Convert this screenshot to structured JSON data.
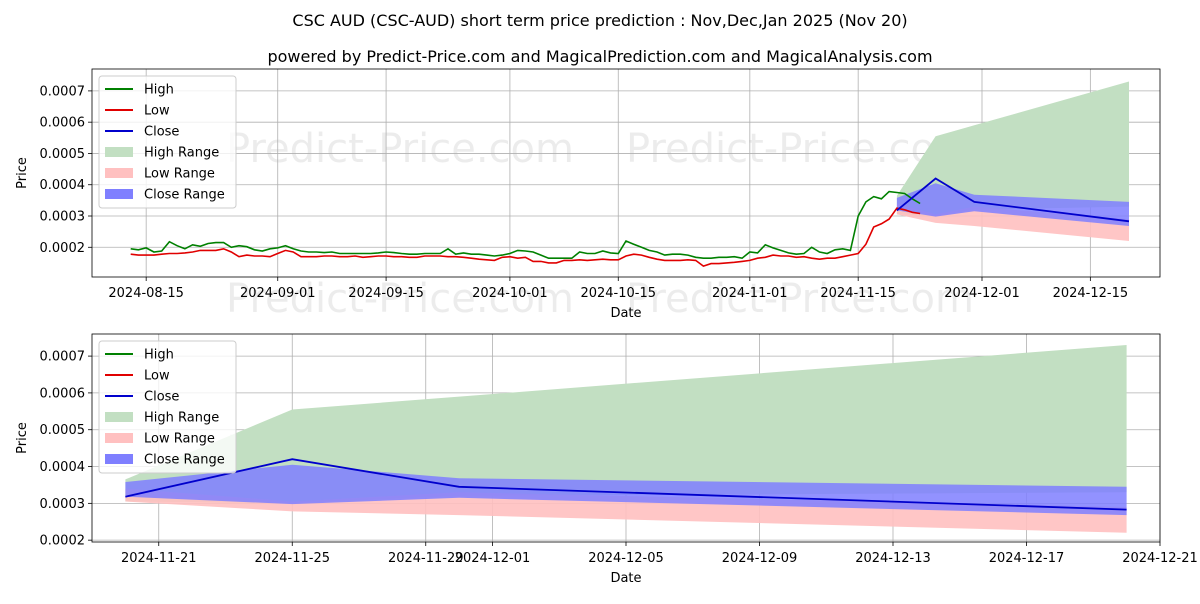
{
  "title_line1": "CSC AUD (CSC-AUD) short term price prediction : Nov,Dec,Jan 2025 (Nov 20)",
  "title_line2": "powered by Predict-Price.com and MagicalPrediction.com and MagicalAnalysis.com",
  "watermark": "Predict-Price.com",
  "colors": {
    "high": "#008000",
    "low": "#e00000",
    "close": "#0000cc",
    "high_range": "#c2dfc2",
    "low_range": "#ffc0c0",
    "close_range": "#7f7fff"
  },
  "chart_data": [
    {
      "type": "line",
      "xlabel": "Date",
      "ylabel": "Price",
      "xlim": [
        "2024-08-08",
        "2024-12-24"
      ],
      "ylim": [
        0.000105,
        0.00077
      ],
      "yticks": [
        0.0002,
        0.0003,
        0.0004,
        0.0005,
        0.0006,
        0.0007
      ],
      "ytick_labels": [
        "0.0002",
        "0.0003",
        "0.0004",
        "0.0005",
        "0.0006",
        "0.0007"
      ],
      "xticks": [
        "2024-08-15",
        "2024-09-01",
        "2024-09-15",
        "2024-10-01",
        "2024-10-15",
        "2024-11-01",
        "2024-11-15",
        "2024-12-01",
        "2024-12-15"
      ],
      "xtick_labels": [
        "2024-08-15",
        "2024-09-01",
        "2024-09-15",
        "2024-10-01",
        "2024-10-15",
        "2024-11-01",
        "2024-11-15",
        "2024-12-01",
        "2024-12-15"
      ],
      "legend": {
        "position": "upper-left",
        "entries": [
          {
            "label": "High",
            "kind": "line",
            "color_key": "high"
          },
          {
            "label": "Low",
            "kind": "line",
            "color_key": "low"
          },
          {
            "label": "Close",
            "kind": "line",
            "color_key": "close"
          },
          {
            "label": "High Range",
            "kind": "patch",
            "color_key": "high_range"
          },
          {
            "label": "Low Range",
            "kind": "patch",
            "color_key": "low_range"
          },
          {
            "label": "Close Range",
            "kind": "patch",
            "color_key": "close_range"
          }
        ]
      },
      "history": {
        "start": "2024-08-13",
        "high": [
          0.000195,
          0.000192,
          0.000198,
          0.000185,
          0.000188,
          0.000218,
          0.000205,
          0.000195,
          0.000208,
          0.000203,
          0.000212,
          0.000215,
          0.000215,
          0.0002,
          0.000205,
          0.000202,
          0.000192,
          0.000188,
          0.000195,
          0.000198,
          0.000205,
          0.000195,
          0.000188,
          0.000185,
          0.000185,
          0.000183,
          0.000185,
          0.00018,
          0.00018,
          0.00018,
          0.00018,
          0.00018,
          0.000182,
          0.000185,
          0.000183,
          0.00018,
          0.000178,
          0.000178,
          0.00018,
          0.00018,
          0.00018,
          0.000195,
          0.000178,
          0.000182,
          0.000178,
          0.000178,
          0.000175,
          0.000172,
          0.000175,
          0.00018,
          0.00019,
          0.000188,
          0.000185,
          0.000175,
          0.000165,
          0.000165,
          0.000165,
          0.000165,
          0.000185,
          0.00018,
          0.00018,
          0.000188,
          0.000182,
          0.00018,
          0.00022,
          0.00021,
          0.0002,
          0.00019,
          0.000185,
          0.000175,
          0.000178,
          0.000178,
          0.000175,
          0.000168,
          0.000165,
          0.000165,
          0.000168,
          0.000168,
          0.00017,
          0.000165,
          0.000185,
          0.000182,
          0.000208,
          0.000198,
          0.00019,
          0.000182,
          0.000178,
          0.00018,
          0.0002,
          0.000185,
          0.00018,
          0.000192,
          0.000195,
          0.00019,
          0.0003,
          0.000345,
          0.000362,
          0.000355,
          0.000378,
          0.000375,
          0.000372,
          0.000355,
          0.00034
        ],
        "low": [
          0.000178,
          0.000175,
          0.000175,
          0.000175,
          0.000178,
          0.00018,
          0.00018,
          0.000182,
          0.000185,
          0.00019,
          0.00019,
          0.00019,
          0.000195,
          0.000185,
          0.00017,
          0.000175,
          0.000172,
          0.000172,
          0.00017,
          0.00018,
          0.00019,
          0.000185,
          0.00017,
          0.00017,
          0.00017,
          0.000172,
          0.000172,
          0.00017,
          0.00017,
          0.000172,
          0.000168,
          0.00017,
          0.000172,
          0.000172,
          0.00017,
          0.00017,
          0.000168,
          0.000168,
          0.000172,
          0.000172,
          0.000172,
          0.00017,
          0.00017,
          0.000168,
          0.000165,
          0.000162,
          0.00016,
          0.000158,
          0.000168,
          0.00017,
          0.000165,
          0.000168,
          0.000155,
          0.000155,
          0.00015,
          0.00015,
          0.000158,
          0.000158,
          0.00016,
          0.000158,
          0.00016,
          0.000162,
          0.00016,
          0.00016,
          0.000172,
          0.000178,
          0.000175,
          0.000168,
          0.000162,
          0.000158,
          0.000158,
          0.000158,
          0.00016,
          0.000158,
          0.00014,
          0.000148,
          0.000148,
          0.00015,
          0.000152,
          0.000155,
          0.000158,
          0.000165,
          0.000168,
          0.000175,
          0.000172,
          0.000172,
          0.000168,
          0.00017,
          0.000165,
          0.000162,
          0.000165,
          0.000165,
          0.00017,
          0.000175,
          0.00018,
          0.00021,
          0.000265,
          0.000275,
          0.00029,
          0.000325,
          0.00032,
          0.000312,
          0.000308
        ]
      },
      "forecast": {
        "dates": [
          "2024-11-20",
          "2024-11-25",
          "2024-11-30",
          "2024-12-20"
        ],
        "close": [
          0.000318,
          0.00042,
          0.000345,
          0.000283
        ],
        "close_range_hi": [
          0.000358,
          0.000405,
          0.000368,
          0.000345
        ],
        "close_range_lo": [
          0.000318,
          0.000298,
          0.000315,
          0.000268
        ],
        "high_range_hi": [
          0.000365,
          0.000555,
          0.00059,
          0.00073
        ],
        "high_range_lo": [
          0.000305,
          0.0003,
          0.00032,
          0.00033
        ],
        "low_range_hi": [
          0.00034,
          0.000305,
          0.00033,
          0.00029
        ],
        "low_range_lo": [
          0.000305,
          0.000278,
          0.000268,
          0.00022
        ]
      }
    },
    {
      "type": "line",
      "xlabel": "Date",
      "ylabel": "Price",
      "xlim": [
        "2024-11-19",
        "2024-12-21"
      ],
      "ylim": [
        0.000195,
        0.00076
      ],
      "yticks": [
        0.0002,
        0.0003,
        0.0004,
        0.0005,
        0.0006,
        0.0007
      ],
      "ytick_labels": [
        "0.0002",
        "0.0003",
        "0.0004",
        "0.0005",
        "0.0006",
        "0.0007"
      ],
      "xticks": [
        "2024-11-21",
        "2024-11-25",
        "2024-11-29",
        "2024-12-01",
        "2024-12-05",
        "2024-12-09",
        "2024-12-13",
        "2024-12-17",
        "2024-12-21"
      ],
      "xtick_labels": [
        "2024-11-21",
        "2024-11-25",
        "2024-11-29",
        "2024-12-01",
        "2024-12-05",
        "2024-12-09",
        "2024-12-13",
        "2024-12-17",
        "2024-12-21"
      ],
      "legend": {
        "position": "upper-left",
        "entries": [
          {
            "label": "High",
            "kind": "line",
            "color_key": "high"
          },
          {
            "label": "Low",
            "kind": "line",
            "color_key": "low"
          },
          {
            "label": "Close",
            "kind": "line",
            "color_key": "close"
          },
          {
            "label": "High Range",
            "kind": "patch",
            "color_key": "high_range"
          },
          {
            "label": "Low Range",
            "kind": "patch",
            "color_key": "low_range"
          },
          {
            "label": "Close Range",
            "kind": "patch",
            "color_key": "close_range"
          }
        ]
      },
      "forecast": {
        "dates": [
          "2024-11-20",
          "2024-11-25",
          "2024-11-30",
          "2024-12-20"
        ],
        "close": [
          0.000318,
          0.00042,
          0.000345,
          0.000283
        ],
        "close_range_hi": [
          0.000358,
          0.000405,
          0.000368,
          0.000345
        ],
        "close_range_lo": [
          0.000318,
          0.000298,
          0.000315,
          0.000268
        ],
        "high_range_hi": [
          0.000365,
          0.000555,
          0.00059,
          0.00073
        ],
        "high_range_lo": [
          0.000305,
          0.0003,
          0.00032,
          0.00033
        ],
        "low_range_hi": [
          0.00034,
          0.000305,
          0.00033,
          0.00029
        ],
        "low_range_lo": [
          0.000305,
          0.000278,
          0.000268,
          0.00022
        ]
      }
    }
  ]
}
